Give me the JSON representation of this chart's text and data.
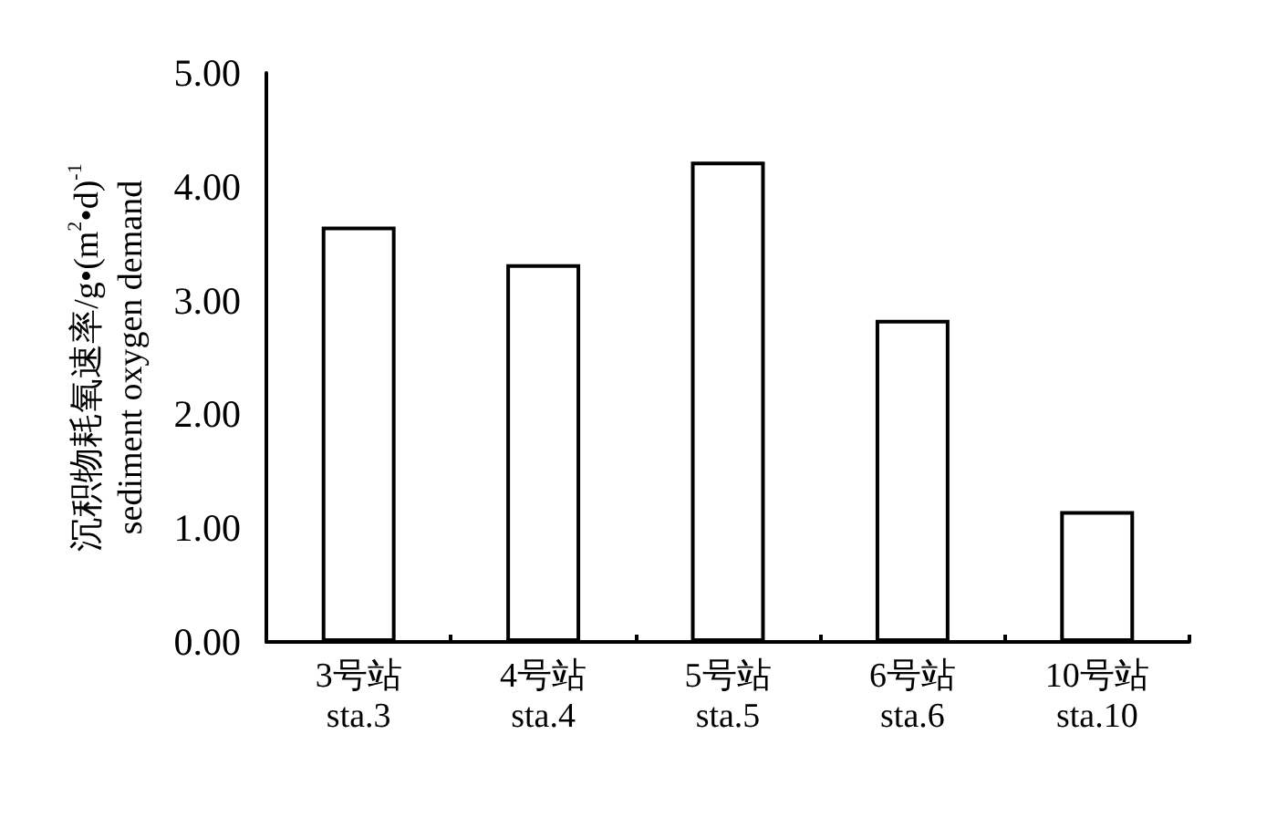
{
  "chart_data": {
    "type": "bar",
    "ylabel": "沉积物耗氧速率/g•(m$^{2}$•d)$^{-1}$\nsediment oxygen demand",
    "categories": [
      "3号站\nsta.3",
      "4号站\nsta.4",
      "5号站\nsta.5",
      "6号站\nsta.6",
      "10号站\nsta.10"
    ],
    "values": [
      3.65,
      3.32,
      4.22,
      2.83,
      1.15
    ],
    "color": "#ffffff",
    "ylim": [
      0,
      5
    ],
    "yticks": [
      {
        "value": 0,
        "label": "0.00"
      },
      {
        "value": 1,
        "label": "1.00"
      },
      {
        "value": 2,
        "label": "2.00"
      },
      {
        "value": 3,
        "label": "3.00"
      },
      {
        "value": 4,
        "label": "4.00"
      },
      {
        "value": 5,
        "label": "5.00"
      }
    ],
    "grid": false
  }
}
